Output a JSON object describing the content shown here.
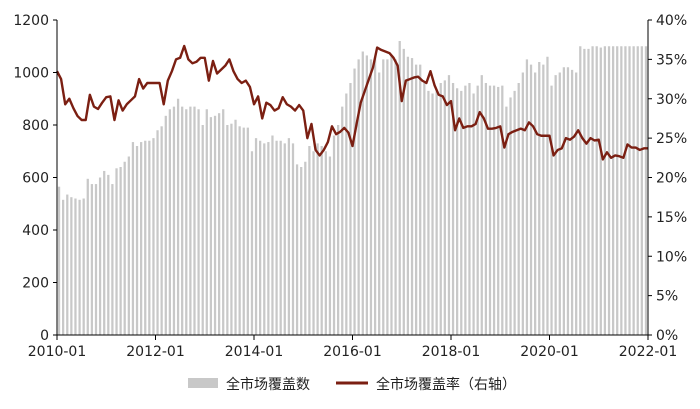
{
  "chart_data": {
    "type": "bar+line",
    "x_tick_labels": [
      "2010-01",
      "2012-01",
      "2014-01",
      "2016-01",
      "2018-01",
      "2020-01",
      "2022-01"
    ],
    "y_left": {
      "ylim": [
        0,
        1200
      ],
      "ticks": [
        "0",
        "200",
        "400",
        "600",
        "800",
        "1000",
        "1200"
      ]
    },
    "y_right": {
      "ylim": [
        0,
        40
      ],
      "ticks": [
        "0%",
        "5%",
        "10%",
        "15%",
        "20%",
        "25%",
        "30%",
        "35%",
        "40%"
      ]
    },
    "colors": {
      "bars": "#c8c8c8",
      "line": "#7b1f12",
      "axis": "#000000"
    },
    "series": [
      {
        "name": "全市场覆盖数",
        "type": "bar",
        "axis": "left",
        "x": [
          2010.0,
          2010.083,
          2010.167,
          2010.25,
          2010.333,
          2010.417,
          2010.5,
          2010.583,
          2010.667,
          2010.75,
          2010.833,
          2010.917,
          2011.0,
          2011.083,
          2011.167,
          2011.25,
          2011.333,
          2011.417,
          2011.5,
          2011.583,
          2011.667,
          2011.75,
          2011.833,
          2011.917,
          2012.0,
          2012.083,
          2012.167,
          2012.25,
          2012.333,
          2012.417,
          2012.5,
          2012.583,
          2012.667,
          2012.75,
          2012.833,
          2012.917,
          2013.0,
          2013.083,
          2013.167,
          2013.25,
          2013.333,
          2013.417,
          2013.5,
          2013.583,
          2013.667,
          2013.75,
          2013.833,
          2013.917,
          2014.0,
          2014.083,
          2014.167,
          2014.25,
          2014.333,
          2014.417,
          2014.5,
          2014.583,
          2014.667,
          2014.75,
          2014.833,
          2014.917,
          2015.0,
          2015.083,
          2015.167,
          2015.25,
          2015.333,
          2015.417,
          2015.5,
          2015.583,
          2015.667,
          2015.75,
          2015.833,
          2015.917,
          2016.0,
          2016.083,
          2016.167,
          2016.25,
          2016.333,
          2016.417,
          2016.5,
          2016.583,
          2016.667,
          2016.75,
          2016.833,
          2016.917,
          2017.0,
          2017.083,
          2017.167,
          2017.25,
          2017.333,
          2017.417,
          2017.5,
          2017.583,
          2017.667,
          2017.75,
          2017.833,
          2017.917,
          2018.0,
          2018.083,
          2018.167,
          2018.25,
          2018.333,
          2018.417,
          2018.5,
          2018.583,
          2018.667,
          2018.75,
          2018.833,
          2018.917,
          2019.0,
          2019.083,
          2019.167,
          2019.25,
          2019.333,
          2019.417,
          2019.5,
          2019.583,
          2019.667,
          2019.75,
          2019.833,
          2019.917,
          2020.0,
          2020.083,
          2020.167,
          2020.25,
          2020.333,
          2020.417,
          2020.5,
          2020.583,
          2020.667,
          2020.75,
          2020.833,
          2020.917,
          2021.0,
          2021.083,
          2021.167,
          2021.25,
          2021.333,
          2021.417,
          2021.5,
          2021.583,
          2021.667,
          2021.75,
          2021.833,
          2021.917
        ],
        "values": [
          565,
          515,
          535,
          525,
          520,
          515,
          520,
          595,
          575,
          575,
          600,
          625,
          610,
          575,
          635,
          640,
          660,
          680,
          735,
          720,
          735,
          740,
          740,
          750,
          780,
          795,
          835,
          860,
          870,
          900,
          870,
          860,
          870,
          870,
          860,
          800,
          860,
          830,
          835,
          845,
          860,
          800,
          805,
          820,
          795,
          790,
          790,
          700,
          750,
          740,
          730,
          735,
          760,
          740,
          740,
          730,
          750,
          730,
          650,
          640,
          660,
          720,
          700,
          730,
          720,
          700,
          680,
          760,
          800,
          870,
          920,
          960,
          1015,
          1050,
          1080,
          1065,
          1050,
          1060,
          1000,
          1050,
          1050,
          1065,
          1050,
          1120,
          1090,
          1060,
          1055,
          1030,
          1030,
          960,
          930,
          920,
          935,
          960,
          970,
          990,
          960,
          940,
          930,
          950,
          960,
          920,
          950,
          990,
          960,
          950,
          950,
          945,
          950,
          870,
          905,
          930,
          960,
          1000,
          1050,
          1030,
          1000,
          1040,
          1030,
          1060,
          950,
          990,
          1000,
          1020,
          1020,
          1010,
          1000,
          1100,
          1090,
          1090,
          1100,
          1100,
          1095,
          1100,
          1100,
          1100,
          1100,
          1100,
          1100,
          1100,
          1100,
          1100,
          1100,
          1100
        ]
      },
      {
        "name": "全市场覆盖率（右轴）",
        "type": "line",
        "axis": "right",
        "x": [
          2010.0,
          2010.083,
          2010.167,
          2010.25,
          2010.333,
          2010.417,
          2010.5,
          2010.583,
          2010.667,
          2010.75,
          2010.833,
          2010.917,
          2011.0,
          2011.083,
          2011.167,
          2011.25,
          2011.333,
          2011.417,
          2011.5,
          2011.583,
          2011.667,
          2011.75,
          2011.833,
          2011.917,
          2012.0,
          2012.083,
          2012.167,
          2012.25,
          2012.333,
          2012.417,
          2012.5,
          2012.583,
          2012.667,
          2012.75,
          2012.833,
          2012.917,
          2013.0,
          2013.083,
          2013.167,
          2013.25,
          2013.333,
          2013.417,
          2013.5,
          2013.583,
          2013.667,
          2013.75,
          2013.833,
          2013.917,
          2014.0,
          2014.083,
          2014.167,
          2014.25,
          2014.333,
          2014.417,
          2014.5,
          2014.583,
          2014.667,
          2014.75,
          2014.833,
          2014.917,
          2015.0,
          2015.083,
          2015.167,
          2015.25,
          2015.333,
          2015.417,
          2015.5,
          2015.583,
          2015.667,
          2015.75,
          2015.833,
          2015.917,
          2016.0,
          2016.083,
          2016.167,
          2016.25,
          2016.333,
          2016.417,
          2016.5,
          2016.583,
          2016.667,
          2016.75,
          2016.833,
          2016.917,
          2017.0,
          2017.083,
          2017.167,
          2017.25,
          2017.333,
          2017.417,
          2017.5,
          2017.583,
          2017.667,
          2017.75,
          2017.833,
          2017.917,
          2018.0,
          2018.083,
          2018.167,
          2018.25,
          2018.333,
          2018.417,
          2018.5,
          2018.583,
          2018.667,
          2018.75,
          2018.833,
          2018.917,
          2019.0,
          2019.083,
          2019.167,
          2019.25,
          2019.333,
          2019.417,
          2019.5,
          2019.583,
          2019.667,
          2019.75,
          2019.833,
          2019.917,
          2020.0,
          2020.083,
          2020.167,
          2020.25,
          2020.333,
          2020.417,
          2020.5,
          2020.583,
          2020.667,
          2020.75,
          2020.833,
          2020.917,
          2021.0,
          2021.083,
          2021.167,
          2021.25,
          2021.333,
          2021.417,
          2021.5,
          2021.583,
          2021.667,
          2021.75,
          2021.833,
          2021.917,
          2022.0
        ],
        "values": [
          33.5,
          32.5,
          29.3,
          30.0,
          28.8,
          27.8,
          27.3,
          27.3,
          30.5,
          29.0,
          28.7,
          29.5,
          30.2,
          30.3,
          27.3,
          29.8,
          28.5,
          29.3,
          29.8,
          30.3,
          32.5,
          31.3,
          32.0,
          32.0,
          32.0,
          32.0,
          29.3,
          32.3,
          33.5,
          35.0,
          35.2,
          36.7,
          35.0,
          34.5,
          34.7,
          35.2,
          35.2,
          32.3,
          34.8,
          33.2,
          33.7,
          34.2,
          35.0,
          33.5,
          32.5,
          32.0,
          32.3,
          31.5,
          29.3,
          30.3,
          27.5,
          29.5,
          29.2,
          28.5,
          28.8,
          30.2,
          29.3,
          29.0,
          28.5,
          29.2,
          28.5,
          25.0,
          26.8,
          23.5,
          22.8,
          23.5,
          24.5,
          26.5,
          25.5,
          25.8,
          26.3,
          25.7,
          24.0,
          26.8,
          29.5,
          31.0,
          32.5,
          34.0,
          36.5,
          36.2,
          36.0,
          35.8,
          35.2,
          34.2,
          29.7,
          32.3,
          32.5,
          32.7,
          32.8,
          32.3,
          32.0,
          33.5,
          31.7,
          30.5,
          30.3,
          29.2,
          29.7,
          26.0,
          27.5,
          26.3,
          26.5,
          26.5,
          26.8,
          28.3,
          27.5,
          26.2,
          26.2,
          26.3,
          26.5,
          23.8,
          25.5,
          25.8,
          26.0,
          26.2,
          26.0,
          27.0,
          26.5,
          25.5,
          25.3,
          25.3,
          25.3,
          22.8,
          23.5,
          23.7,
          25.0,
          24.8,
          25.2,
          26.0,
          25.0,
          24.3,
          25.0,
          24.7,
          24.8,
          22.3,
          23.2,
          22.5,
          22.8,
          22.7,
          22.5,
          24.2,
          23.8,
          23.8,
          23.5,
          23.7,
          23.7
        ]
      }
    ],
    "legend": {
      "placement": "bottom-center",
      "entries": [
        "全市场覆盖数",
        "全市场覆盖率（右轴）"
      ]
    }
  }
}
